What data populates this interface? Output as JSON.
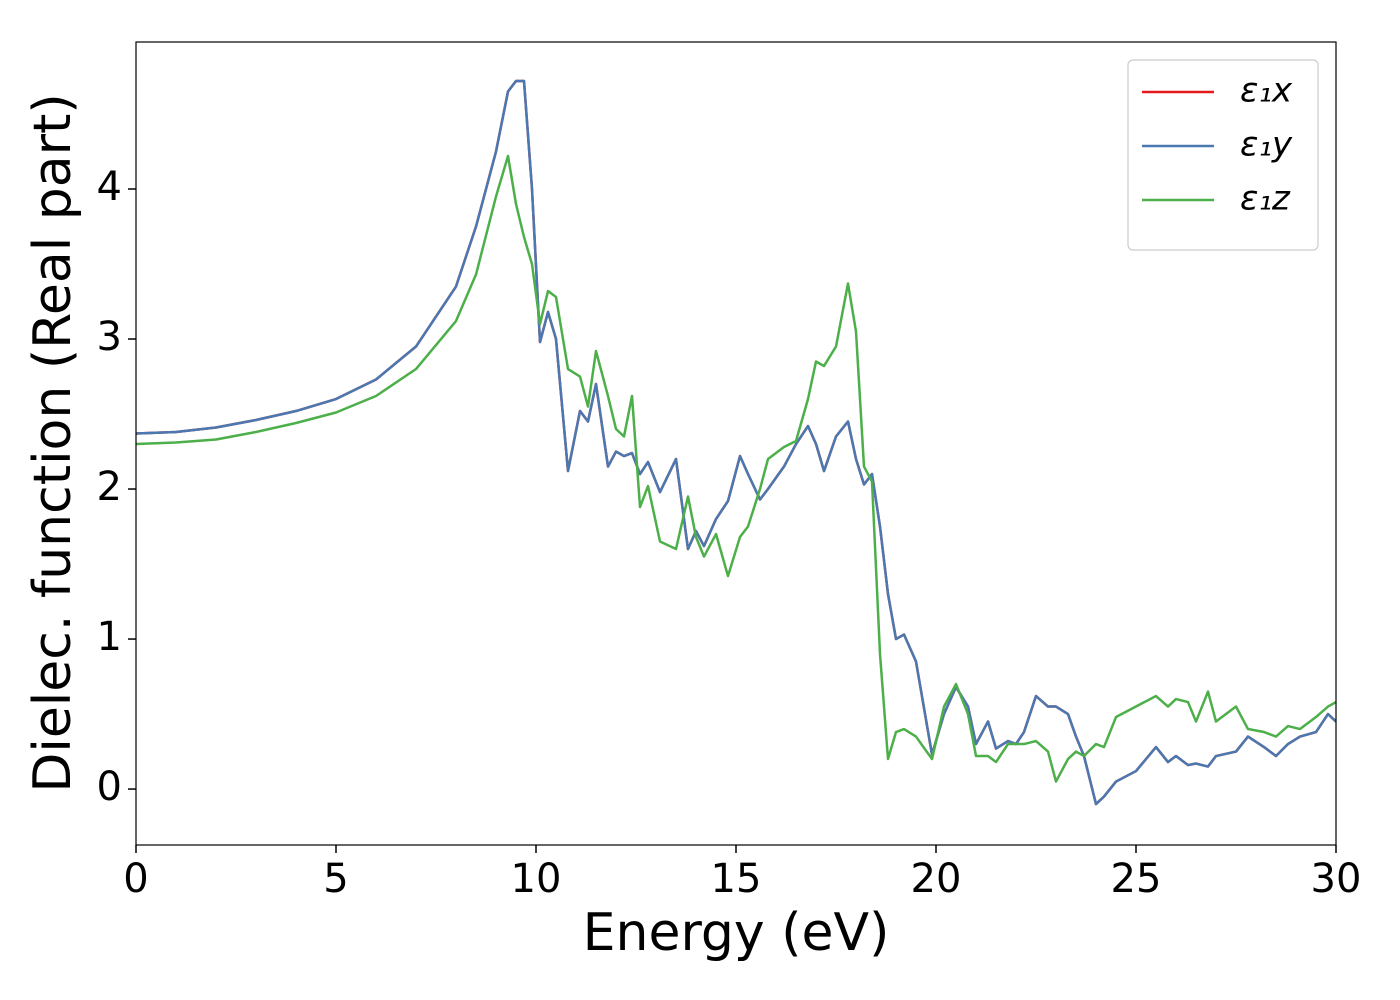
{
  "chart_data": {
    "type": "line",
    "xlabel": "Energy (eV)",
    "ylabel": "Dielec. function (Real part)",
    "x": [
      0,
      1,
      2,
      3,
      4,
      5,
      6,
      7,
      8,
      8.5,
      9,
      9.3,
      9.5,
      9.7,
      9.9,
      10.1,
      10.3,
      10.5,
      10.8,
      11.1,
      11.3,
      11.5,
      11.8,
      12.0,
      12.2,
      12.4,
      12.6,
      12.8,
      13.1,
      13.5,
      13.8,
      14.0,
      14.2,
      14.5,
      14.8,
      15.1,
      15.3,
      15.6,
      15.8,
      16.2,
      16.5,
      16.8,
      17.0,
      17.2,
      17.5,
      17.8,
      18.0,
      18.2,
      18.4,
      18.6,
      18.8,
      19.0,
      19.2,
      19.5,
      19.9,
      20.2,
      20.5,
      20.8,
      21.0,
      21.3,
      21.5,
      21.8,
      22.0,
      22.2,
      22.5,
      22.8,
      23.0,
      23.3,
      23.5,
      23.7,
      24.0,
      24.2,
      24.5,
      25.0,
      25.5,
      25.8,
      26.0,
      26.3,
      26.5,
      26.8,
      27.0,
      27.5,
      27.8,
      28.2,
      28.5,
      28.8,
      29.1,
      29.5,
      29.8,
      30
    ],
    "series": [
      {
        "name": "ε₁x",
        "color": "#e41a1c",
        "values": [
          2.37,
          2.38,
          2.41,
          2.46,
          2.52,
          2.6,
          2.73,
          2.95,
          3.35,
          3.75,
          4.25,
          4.65,
          4.72,
          4.72,
          4.0,
          2.98,
          3.18,
          3.0,
          2.12,
          2.52,
          2.45,
          2.7,
          2.15,
          2.25,
          2.22,
          2.24,
          2.1,
          2.18,
          1.98,
          2.2,
          1.6,
          1.72,
          1.62,
          1.8,
          1.92,
          2.22,
          2.1,
          1.93,
          2.0,
          2.15,
          2.3,
          2.42,
          2.3,
          2.12,
          2.35,
          2.45,
          2.2,
          2.03,
          2.1,
          1.75,
          1.3,
          1.0,
          1.03,
          0.85,
          0.23,
          0.5,
          0.68,
          0.55,
          0.3,
          0.45,
          0.27,
          0.32,
          0.3,
          0.38,
          0.62,
          0.55,
          0.55,
          0.5,
          0.35,
          0.22,
          -0.1,
          -0.05,
          0.05,
          0.12,
          0.28,
          0.18,
          0.22,
          0.16,
          0.17,
          0.15,
          0.22,
          0.25,
          0.35,
          0.28,
          0.22,
          0.3,
          0.35,
          0.38,
          0.5,
          0.45
        ]
      },
      {
        "name": "ε₁y",
        "color": "#4a78b0",
        "values": [
          2.37,
          2.38,
          2.41,
          2.46,
          2.52,
          2.6,
          2.73,
          2.95,
          3.35,
          3.75,
          4.25,
          4.65,
          4.72,
          4.72,
          4.0,
          2.98,
          3.18,
          3.0,
          2.12,
          2.52,
          2.45,
          2.7,
          2.15,
          2.25,
          2.22,
          2.24,
          2.1,
          2.18,
          1.98,
          2.2,
          1.6,
          1.72,
          1.62,
          1.8,
          1.92,
          2.22,
          2.1,
          1.93,
          2.0,
          2.15,
          2.3,
          2.42,
          2.3,
          2.12,
          2.35,
          2.45,
          2.2,
          2.03,
          2.1,
          1.75,
          1.3,
          1.0,
          1.03,
          0.85,
          0.23,
          0.5,
          0.68,
          0.55,
          0.3,
          0.45,
          0.27,
          0.32,
          0.3,
          0.38,
          0.62,
          0.55,
          0.55,
          0.5,
          0.35,
          0.22,
          -0.1,
          -0.05,
          0.05,
          0.12,
          0.28,
          0.18,
          0.22,
          0.16,
          0.17,
          0.15,
          0.22,
          0.25,
          0.35,
          0.28,
          0.22,
          0.3,
          0.35,
          0.38,
          0.5,
          0.45
        ]
      },
      {
        "name": "ε₁z",
        "color": "#4daf4a",
        "values": [
          2.3,
          2.31,
          2.33,
          2.38,
          2.44,
          2.51,
          2.62,
          2.8,
          3.12,
          3.43,
          3.95,
          4.22,
          3.9,
          3.68,
          3.5,
          3.1,
          3.32,
          3.28,
          2.8,
          2.75,
          2.55,
          2.92,
          2.62,
          2.4,
          2.35,
          2.62,
          1.88,
          2.02,
          1.65,
          1.6,
          1.95,
          1.68,
          1.55,
          1.7,
          1.42,
          1.68,
          1.75,
          2.0,
          2.2,
          2.28,
          2.32,
          2.6,
          2.85,
          2.82,
          2.95,
          3.37,
          3.05,
          2.15,
          2.05,
          0.9,
          0.2,
          0.38,
          0.4,
          0.35,
          0.2,
          0.55,
          0.7,
          0.5,
          0.22,
          0.22,
          0.18,
          0.3,
          0.3,
          0.3,
          0.32,
          0.25,
          0.05,
          0.2,
          0.25,
          0.22,
          0.3,
          0.28,
          0.48,
          0.55,
          0.62,
          0.55,
          0.6,
          0.58,
          0.45,
          0.65,
          0.45,
          0.55,
          0.4,
          0.38,
          0.35,
          0.42,
          0.4,
          0.48,
          0.55,
          0.58
        ]
      }
    ],
    "xlim": [
      0,
      30
    ],
    "xticks": [
      0,
      5,
      10,
      15,
      20,
      25,
      30
    ],
    "ylim": [
      -0.373,
      4.98
    ],
    "yticks": [
      0,
      1,
      2,
      3,
      4
    ],
    "legend": "upper right",
    "grid": false
  }
}
